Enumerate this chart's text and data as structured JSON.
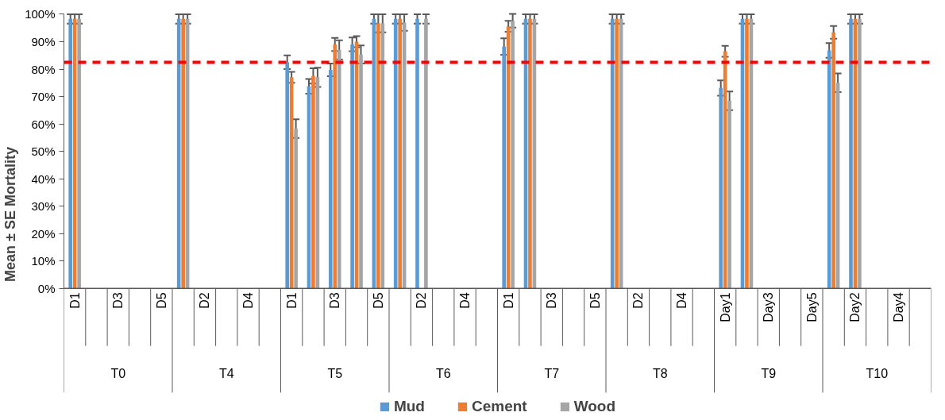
{
  "chart_data": {
    "type": "bar",
    "ylabel": "Mean ± SE Mortality",
    "categories": [
      "D1",
      null,
      "D3",
      null,
      "D5",
      null,
      "D2",
      null,
      "D4",
      null,
      "D1",
      null,
      "D3",
      null,
      "D5",
      null,
      "D2",
      null,
      "D4",
      null,
      "D1",
      null,
      "D3",
      null,
      "D5",
      null,
      "D2",
      null,
      "D4",
      null,
      "Day1",
      null,
      "Day3",
      null,
      "Day5",
      null,
      "Day2",
      null,
      "Day4",
      null
    ],
    "annotations": [
      "T0",
      "T4",
      "T5",
      "T6",
      "T7",
      "T8",
      "T9",
      "T10"
    ],
    "series": [
      {
        "name": "Mud",
        "color": "#5b9bd5",
        "values": [
          98.3,
          null,
          null,
          null,
          null,
          98.3,
          null,
          null,
          null,
          null,
          82.5,
          73.7,
          79.7,
          89,
          98.3,
          98.3,
          98.3,
          null,
          null,
          null,
          88.2,
          98.3,
          null,
          null,
          null,
          98.3,
          null,
          null,
          null,
          null,
          73.1,
          98.3,
          null,
          null,
          null,
          86.8,
          98.3,
          null,
          null,
          null
        ],
        "errors": [
          1.7,
          null,
          null,
          null,
          null,
          1.7,
          null,
          null,
          null,
          null,
          2.5,
          2.7,
          2.3,
          2.5,
          1.7,
          1.7,
          1.7,
          null,
          null,
          null,
          3,
          1.7,
          null,
          null,
          null,
          1.7,
          null,
          null,
          null,
          null,
          2.8,
          1.7,
          null,
          null,
          null,
          2.7,
          1.7,
          null,
          null,
          null
        ]
      },
      {
        "name": "Cement",
        "color": "#ed7d31",
        "values": [
          98.3,
          null,
          null,
          null,
          null,
          98.3,
          null,
          null,
          null,
          null,
          77,
          77.5,
          89,
          90,
          96.7,
          98.3,
          null,
          null,
          null,
          null,
          95.6,
          98.3,
          null,
          null,
          null,
          98.3,
          null,
          null,
          null,
          null,
          86.5,
          98.3,
          null,
          null,
          null,
          93.4,
          98.3,
          null,
          null,
          null
        ],
        "errors": [
          1.7,
          null,
          null,
          null,
          null,
          1.7,
          null,
          null,
          null,
          null,
          2,
          2.8,
          2.4,
          2,
          3.3,
          1.7,
          null,
          null,
          null,
          null,
          2,
          1.7,
          null,
          null,
          null,
          1.7,
          null,
          null,
          null,
          null,
          2,
          1.7,
          null,
          null,
          null,
          2.3,
          1.7,
          null,
          null,
          null
        ]
      },
      {
        "name": "Wood",
        "color": "#a5a5a5",
        "values": [
          98.3,
          null,
          null,
          null,
          null,
          98.3,
          null,
          null,
          null,
          null,
          58.3,
          77,
          87,
          85.3,
          96.7,
          97,
          98.3,
          null,
          null,
          null,
          97.6,
          98.3,
          null,
          null,
          null,
          98.3,
          null,
          null,
          null,
          null,
          68.4,
          98.3,
          null,
          null,
          null,
          75,
          98.3,
          null,
          null,
          null
        ],
        "errors": [
          1.7,
          null,
          null,
          null,
          null,
          1.7,
          null,
          null,
          null,
          null,
          3.4,
          3.5,
          3.5,
          3.3,
          3.3,
          3,
          1.7,
          null,
          null,
          null,
          2.5,
          1.7,
          null,
          null,
          null,
          1.7,
          null,
          null,
          null,
          null,
          3.4,
          1.7,
          null,
          null,
          null,
          3.4,
          1.7,
          null,
          null,
          null
        ]
      }
    ],
    "ylim": [
      0,
      100
    ],
    "yticks": [
      {
        "value": 0,
        "label": "0%"
      },
      {
        "value": 10,
        "label": "10%"
      },
      {
        "value": 20,
        "label": "20%"
      },
      {
        "value": 30,
        "label": "30%"
      },
      {
        "value": 40,
        "label": "40%"
      },
      {
        "value": 50,
        "label": "50%"
      },
      {
        "value": 60,
        "label": "60%"
      },
      {
        "value": 70,
        "label": "70%"
      },
      {
        "value": 80,
        "label": "80%"
      },
      {
        "value": 90,
        "label": "90%"
      },
      {
        "value": 100,
        "label": "100%"
      }
    ],
    "ref_lines": [
      {
        "axis": "y",
        "value": 82.5,
        "color": "#ff0000",
        "line_style": "dashed"
      }
    ],
    "legend": "bottom"
  }
}
